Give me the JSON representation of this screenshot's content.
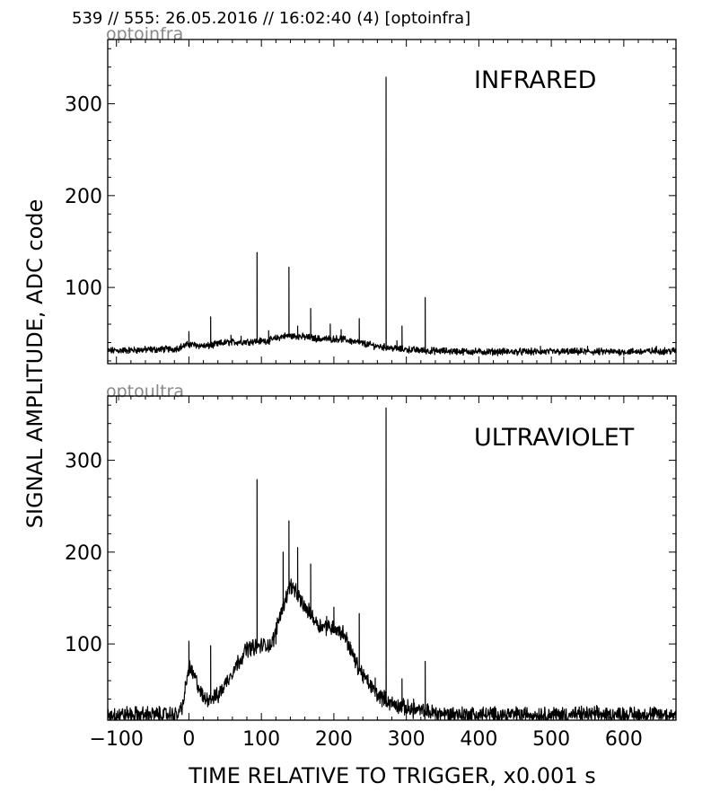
{
  "header": {
    "title": "539 // 555:   26.05.2016 // 16:02:40 (4)  [optoinfra]"
  },
  "axes": {
    "xlabel": "TIME RELATIVE TO TRIGGER,   x0.001 s",
    "ylabel": "SIGNAL AMPLITUDE,  ADC code",
    "xlim": [
      -112,
      672
    ],
    "ylim": [
      17,
      370
    ],
    "x_ticks": [
      -100,
      0,
      100,
      200,
      300,
      400,
      500,
      600
    ],
    "x_tick_labels": [
      "−100",
      "0",
      "100",
      "200",
      "300",
      "400",
      "500",
      "600"
    ],
    "y_ticks": [
      100,
      200,
      300
    ],
    "y_tick_labels": [
      "100",
      "200",
      "300"
    ]
  },
  "chart_data": [
    {
      "type": "line",
      "channel": "optoinfra",
      "label": "INFRARED",
      "series": [
        {
          "baseline": [
            [
              -112,
              31
            ],
            [
              -20,
              33
            ],
            [
              0,
              38
            ],
            [
              25,
              36
            ],
            [
              50,
              40
            ],
            [
              80,
              41
            ],
            [
              110,
              42
            ],
            [
              130,
              47
            ],
            [
              150,
              47
            ],
            [
              180,
              44
            ],
            [
              210,
              44
            ],
            [
              240,
              39
            ],
            [
              260,
              36
            ],
            [
              290,
              33
            ],
            [
              330,
              31
            ],
            [
              400,
              30
            ],
            [
              500,
              30
            ],
            [
              600,
              30
            ],
            [
              672,
              31
            ]
          ],
          "noise_amplitude": 3,
          "spikes": [
            [
              0,
              52
            ],
            [
              30,
              68
            ],
            [
              58,
              48
            ],
            [
              72,
              47
            ],
            [
              94,
              138
            ],
            [
              110,
              53
            ],
            [
              138,
              122
            ],
            [
              150,
              58
            ],
            [
              168,
              77
            ],
            [
              195,
              60
            ],
            [
              210,
              54
            ],
            [
              235,
              66
            ],
            [
              272,
              329
            ],
            [
              287,
              42
            ],
            [
              294,
              58
            ],
            [
              326,
              89
            ],
            [
              485,
              36
            ],
            [
              550,
              36
            ],
            [
              645,
              36
            ]
          ]
        }
      ]
    },
    {
      "type": "line",
      "channel": "optoultra",
      "label": "ULTRAVIOLET",
      "series": [
        {
          "baseline": [
            [
              -112,
              23
            ],
            [
              -15,
              23
            ],
            [
              -8,
              35
            ],
            [
              0,
              75
            ],
            [
              10,
              60
            ],
            [
              20,
              40
            ],
            [
              40,
              43
            ],
            [
              60,
              70
            ],
            [
              80,
              95
            ],
            [
              100,
              98
            ],
            [
              115,
              100
            ],
            [
              125,
              130
            ],
            [
              140,
              165
            ],
            [
              160,
              140
            ],
            [
              180,
              120
            ],
            [
              200,
              118
            ],
            [
              215,
              110
            ],
            [
              230,
              80
            ],
            [
              245,
              60
            ],
            [
              260,
              45
            ],
            [
              280,
              35
            ],
            [
              300,
              30
            ],
            [
              320,
              27
            ],
            [
              350,
              24
            ],
            [
              400,
              23
            ],
            [
              500,
              23
            ],
            [
              600,
              23
            ],
            [
              672,
              23
            ]
          ],
          "noise_amplitude": 7,
          "spikes": [
            [
              0,
              103
            ],
            [
              30,
              98
            ],
            [
              94,
              279
            ],
            [
              120,
              100
            ],
            [
              130,
              200
            ],
            [
              138,
              234
            ],
            [
              150,
              205
            ],
            [
              168,
              187
            ],
            [
              190,
              130
            ],
            [
              200,
              140
            ],
            [
              235,
              133
            ],
            [
              257,
              63
            ],
            [
              272,
              357
            ],
            [
              294,
              62
            ],
            [
              310,
              40
            ],
            [
              326,
              81
            ]
          ]
        }
      ]
    }
  ]
}
